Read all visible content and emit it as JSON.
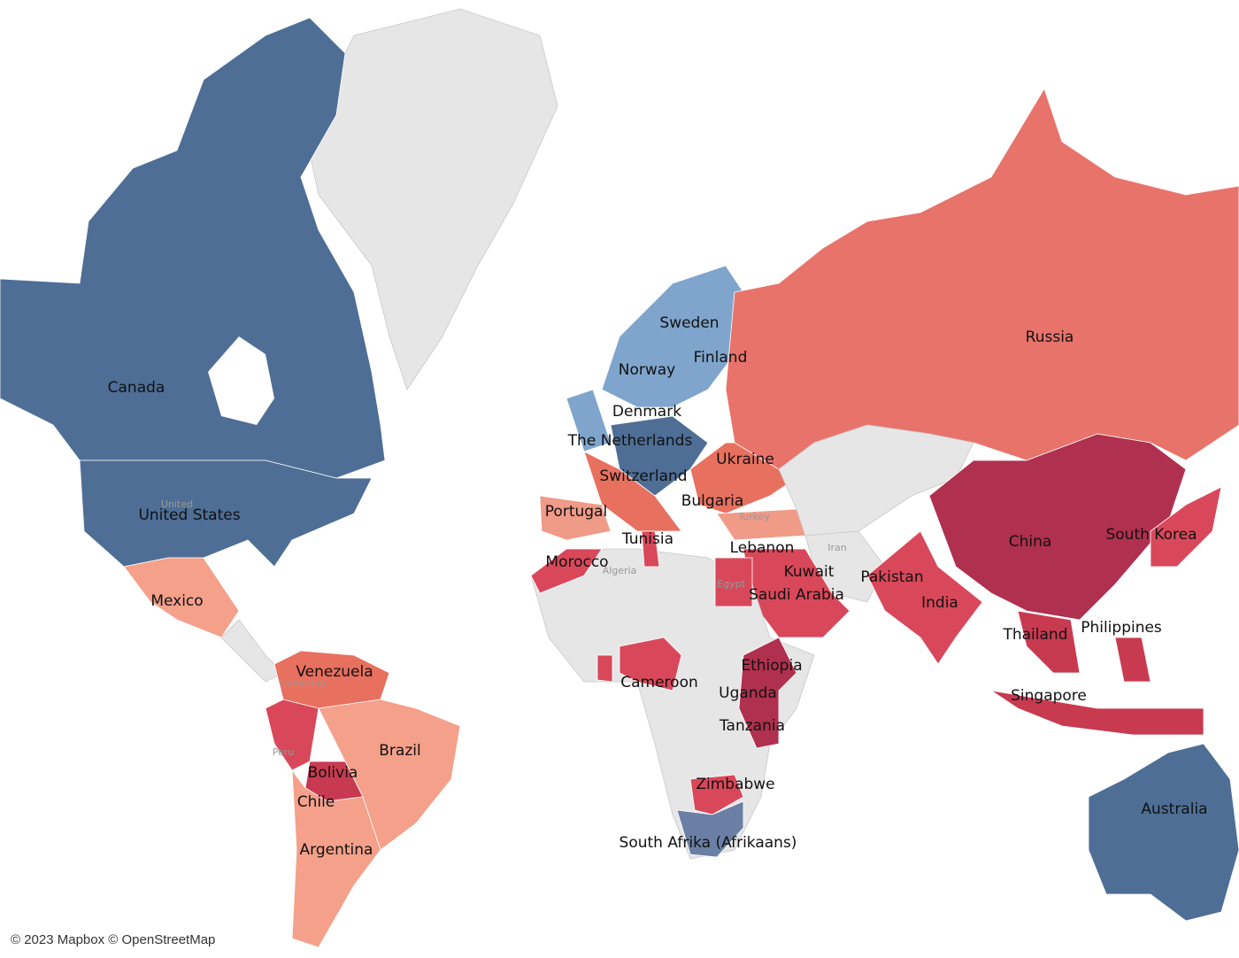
{
  "labels": [
    "Canada",
    "United States",
    "Mexico",
    "Venezuela",
    "Brazil",
    "Bolivia",
    "Chile",
    "Argentina",
    "Sweden",
    "Finland",
    "Norway",
    "Denmark",
    "The Netherlands",
    "Ukraine",
    "Switzerland",
    "Portugal",
    "Bulgaria",
    "Tunisia",
    "Morocco",
    "Lebanon",
    "Kuwait",
    "Saudi Arabia",
    "Pakistan",
    "India",
    "Russia",
    "China",
    "South Korea",
    "Thailand",
    "Philippines",
    "Singapore",
    "Ethiopia",
    "Uganda",
    "Tanzania",
    "Cameroon",
    "Zimbabwe",
    "South Afrika (Afrikaans)",
    "Australia"
  ],
  "minor_labels": [
    "Algeria",
    "Iran",
    "Egypt",
    "Turkey",
    "Colombia",
    "Peru",
    "United"
  ],
  "attribution": "© 2023 Mapbox © OpenStreetMap"
}
